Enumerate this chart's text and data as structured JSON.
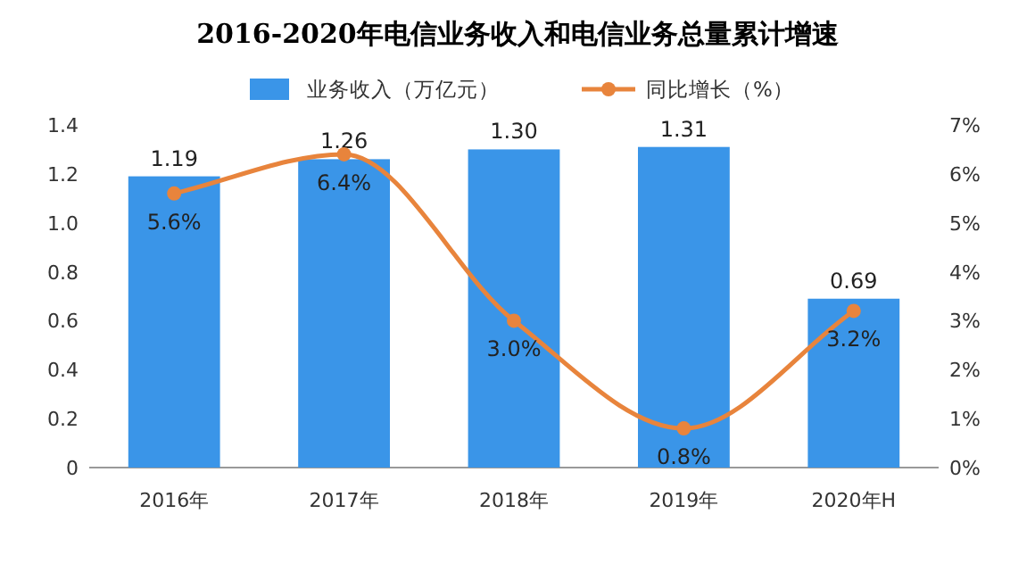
{
  "chart_data": {
    "type": "bar",
    "title": "2016-2020年电信业务收入和电信业务总量累计增速",
    "categories": [
      "2016年",
      "2017年",
      "2018年",
      "2019年",
      "2020年H"
    ],
    "series": [
      {
        "name": "业务收入（万亿元）",
        "color": "#3a95e8",
        "values": [
          1.19,
          1.26,
          1.3,
          1.31,
          0.69
        ],
        "value_labels": [
          "1.19",
          "1.26",
          "1.30",
          "1.31",
          "0.69"
        ]
      },
      {
        "name": "同比增长（%）",
        "type": "line",
        "axis": "y2",
        "color": "#e8843c",
        "marker": "circle",
        "values": [
          5.6,
          6.4,
          3.0,
          0.8,
          3.2
        ],
        "value_labels": [
          "5.6%",
          "6.4%",
          "3.0%",
          "0.8%",
          "3.2%"
        ]
      }
    ],
    "ylim": [
      0,
      1.4
    ],
    "yticks": [
      0,
      {
        "value": 0.2,
        "label": "0.2"
      },
      {
        "value": 0.4,
        "label": "0.4"
      },
      {
        "value": 0.6,
        "label": "0.6"
      },
      {
        "value": 0.8,
        "label": "0.8"
      },
      {
        "value": 1.0,
        "label": "1.0"
      },
      {
        "value": 1.2,
        "label": "1.2"
      },
      {
        "value": 1.4,
        "label": "1.4"
      }
    ],
    "y2lim": [
      0,
      7
    ],
    "y2ticks": [
      {
        "value": 0,
        "label": "0%"
      },
      {
        "value": 1,
        "label": "1%"
      },
      {
        "value": 2,
        "label": "2%"
      },
      {
        "value": 3,
        "label": "3%"
      },
      {
        "value": 4,
        "label": "4%"
      },
      {
        "value": 5,
        "label": "5%"
      },
      {
        "value": 6,
        "label": "6%"
      },
      {
        "value": 7,
        "label": "7%"
      }
    ],
    "legend": "top"
  }
}
